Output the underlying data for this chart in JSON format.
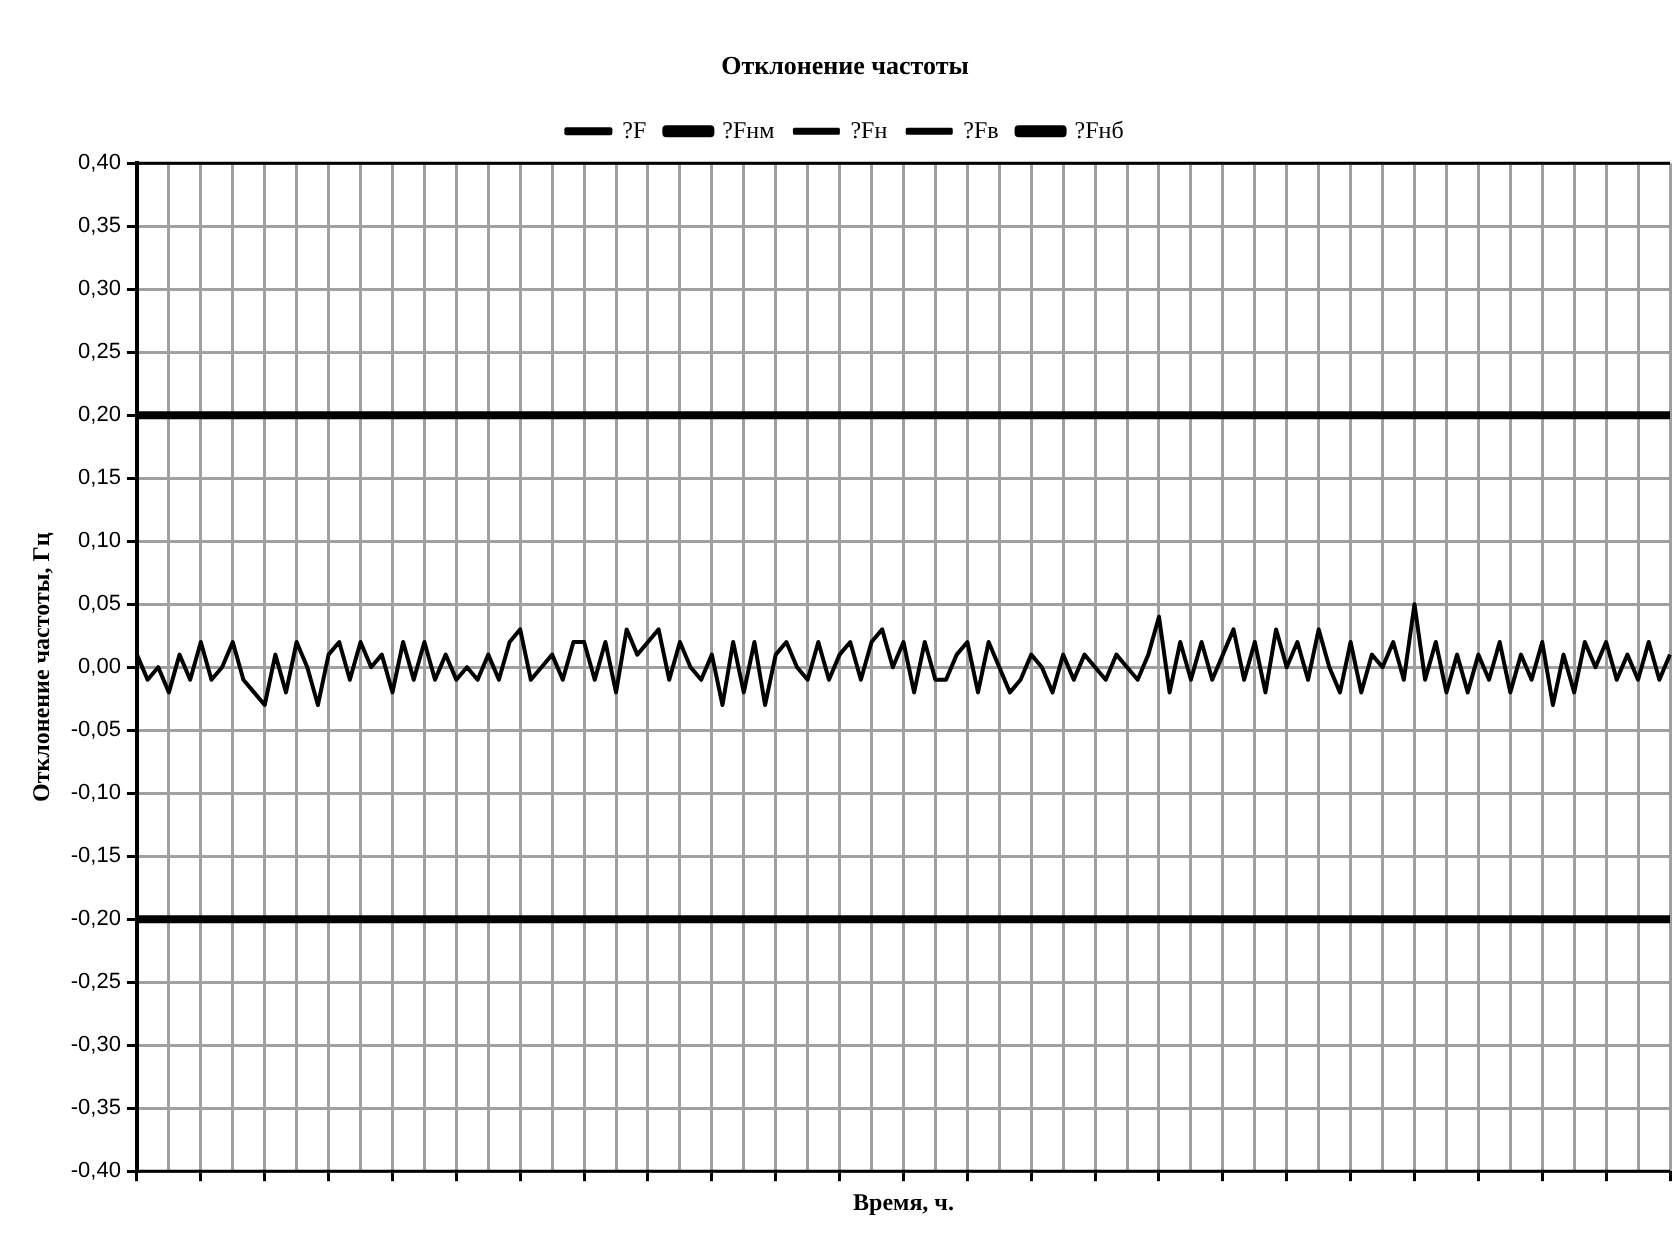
{
  "chart_data": {
    "type": "line",
    "title": "Отклонение частоты",
    "xlabel": "Время, ч.",
    "ylabel": "Отклонение частоты, Гц",
    "categories": [
      null,
      null,
      null,
      null,
      null,
      null,
      null,
      null,
      null,
      null,
      null,
      null,
      null,
      null,
      null,
      null,
      null,
      null,
      null,
      null,
      null,
      null,
      null,
      null,
      null,
      null,
      null,
      null,
      null,
      null,
      null,
      null,
      null,
      null,
      null,
      null,
      null,
      null,
      null,
      null,
      null,
      null,
      null,
      null,
      null,
      null,
      null,
      null,
      null,
      null,
      null,
      null,
      null,
      null,
      null,
      null,
      null,
      null,
      null,
      null,
      null,
      null,
      null,
      null,
      null,
      null,
      null,
      null,
      null,
      null,
      null,
      null,
      null,
      null,
      null,
      null,
      null,
      null,
      null,
      null,
      null,
      null,
      null,
      null,
      null,
      null,
      null,
      null,
      null,
      null,
      null,
      null,
      null,
      null,
      null,
      null,
      null,
      null,
      null,
      null,
      null,
      null,
      null,
      null,
      null,
      null,
      null,
      null,
      null,
      null,
      null,
      null,
      null,
      null,
      null,
      null,
      null,
      null,
      null,
      null,
      null,
      null,
      null,
      null,
      null,
      null,
      null,
      null,
      null,
      null,
      null,
      null,
      null,
      null,
      null,
      null,
      null,
      null,
      null,
      null,
      null,
      null,
      null,
      null,
      null
    ],
    "ylim": [
      -0.4,
      0.4
    ],
    "yticks": [
      {
        "value": -0.4,
        "label": "-0,40"
      },
      {
        "value": -0.35,
        "label": "-0,35"
      },
      {
        "value": -0.3,
        "label": "-0,30"
      },
      {
        "value": -0.25,
        "label": "-0,25"
      },
      {
        "value": -0.2,
        "label": "-0,20"
      },
      {
        "value": -0.15,
        "label": "-0,15"
      },
      {
        "value": -0.1,
        "label": "-0,10"
      },
      {
        "value": -0.05,
        "label": "-0,05"
      },
      {
        "value": 0,
        "label": "0,00"
      },
      {
        "value": 0.05,
        "label": "0,05"
      },
      {
        "value": 0.1,
        "label": "0,10"
      },
      {
        "value": 0.15,
        "label": "0,15"
      },
      {
        "value": 0.2,
        "label": "0,20"
      },
      {
        "value": 0.25,
        "label": "0,25"
      },
      {
        "value": 0.3,
        "label": "0,30"
      },
      {
        "value": 0.35,
        "label": "0,35"
      },
      {
        "value": 0.4,
        "label": "0,40"
      }
    ],
    "tick_labels": "y",
    "grid": true,
    "legend": "top",
    "marker": "none",
    "line_style": "solid",
    "series": [
      {
        "name": "?F",
        "color": "#000000",
        "values": [
          0.01,
          -0.01,
          0,
          -0.02,
          0.01,
          -0.01,
          0.02,
          -0.01,
          0,
          0.02,
          -0.01,
          -0.02,
          -0.03,
          0.01,
          -0.02,
          0.02,
          0,
          -0.03,
          0.01,
          0.02,
          -0.01,
          0.02,
          0,
          0.01,
          -0.02,
          0.02,
          -0.01,
          0.02,
          -0.01,
          0.01,
          -0.01,
          0,
          -0.01,
          0.01,
          -0.01,
          0.02,
          0.03,
          -0.01,
          0,
          0.01,
          -0.01,
          0.02,
          0.02,
          -0.01,
          0.02,
          -0.02,
          0.03,
          0.01,
          0.02,
          0.03,
          -0.01,
          0.02,
          0,
          -0.01,
          0.01,
          -0.03,
          0.02,
          -0.02,
          0.02,
          -0.03,
          0.01,
          0.02,
          0,
          -0.01,
          0.02,
          -0.01,
          0.01,
          0.02,
          -0.01,
          0.02,
          0.03,
          0,
          0.02,
          -0.02,
          0.02,
          -0.01,
          -0.01,
          0.01,
          0.02,
          -0.02,
          0.02,
          0,
          -0.02,
          -0.01,
          0.01,
          0,
          -0.02,
          0.01,
          -0.01,
          0.01,
          0,
          -0.01,
          0.01,
          0,
          -0.01,
          0.01,
          0.04,
          -0.02,
          0.02,
          -0.01,
          0.02,
          -0.01,
          0.01,
          0.03,
          -0.01,
          0.02,
          -0.02,
          0.03,
          0,
          0.02,
          -0.01,
          0.03,
          0,
          -0.02,
          0.02,
          -0.02,
          0.01,
          0,
          0.02,
          -0.01,
          0.05,
          -0.01,
          0.02,
          -0.02,
          0.01,
          -0.02,
          0.01,
          -0.01,
          0.02,
          -0.02,
          0.01,
          -0.01,
          0.02,
          -0.03,
          0.01,
          -0.02,
          0.02,
          0,
          0.02,
          -0.01,
          0.01,
          -0.01,
          0.02,
          -0.01,
          0.01
        ]
      },
      {
        "name": "?Fнм",
        "color": "#000000",
        "values": [
          -0.2,
          -0.2,
          -0.2,
          -0.2,
          -0.2,
          -0.2,
          -0.2,
          -0.2,
          -0.2,
          -0.2,
          -0.2,
          -0.2,
          -0.2,
          -0.2,
          -0.2,
          -0.2,
          -0.2,
          -0.2,
          -0.2,
          -0.2,
          -0.2,
          -0.2,
          -0.2,
          -0.2,
          -0.2,
          -0.2,
          -0.2,
          -0.2,
          -0.2,
          -0.2,
          -0.2,
          -0.2,
          -0.2,
          -0.2,
          -0.2,
          -0.2,
          -0.2,
          -0.2,
          -0.2,
          -0.2,
          -0.2,
          -0.2,
          -0.2,
          -0.2,
          -0.2,
          -0.2,
          -0.2,
          -0.2,
          -0.2,
          -0.2,
          -0.2,
          -0.2,
          -0.2,
          -0.2,
          -0.2,
          -0.2,
          -0.2,
          -0.2,
          -0.2,
          -0.2,
          -0.2,
          -0.2,
          -0.2,
          -0.2,
          -0.2,
          -0.2,
          -0.2,
          -0.2,
          -0.2,
          -0.2,
          -0.2,
          -0.2,
          -0.2,
          -0.2,
          -0.2,
          -0.2,
          -0.2,
          -0.2,
          -0.2,
          -0.2,
          -0.2,
          -0.2,
          -0.2,
          -0.2,
          -0.2,
          -0.2,
          -0.2,
          -0.2,
          -0.2,
          -0.2,
          -0.2,
          -0.2,
          -0.2,
          -0.2,
          -0.2,
          -0.2,
          -0.2,
          -0.2,
          -0.2,
          -0.2,
          -0.2,
          -0.2,
          -0.2,
          -0.2,
          -0.2,
          -0.2,
          -0.2,
          -0.2,
          -0.2,
          -0.2,
          -0.2,
          -0.2,
          -0.2,
          -0.2,
          -0.2,
          -0.2,
          -0.2,
          -0.2,
          -0.2,
          -0.2,
          -0.2,
          -0.2,
          -0.2,
          -0.2,
          -0.2,
          -0.2,
          -0.2,
          -0.2,
          -0.2,
          -0.2,
          -0.2,
          -0.2,
          -0.2,
          -0.2,
          -0.2,
          -0.2,
          -0.2,
          -0.2,
          -0.2,
          -0.2,
          -0.2,
          -0.2,
          -0.2,
          -0.2,
          -0.2
        ]
      },
      {
        "name": "?Fн",
        "color": "#000000",
        "values": [
          -0.4,
          -0.4,
          -0.4,
          -0.4,
          -0.4,
          -0.4,
          -0.4,
          -0.4,
          -0.4,
          -0.4,
          -0.4,
          -0.4,
          -0.4,
          -0.4,
          -0.4,
          -0.4,
          -0.4,
          -0.4,
          -0.4,
          -0.4,
          -0.4,
          -0.4,
          -0.4,
          -0.4,
          -0.4,
          -0.4,
          -0.4,
          -0.4,
          -0.4,
          -0.4,
          -0.4,
          -0.4,
          -0.4,
          -0.4,
          -0.4,
          -0.4,
          -0.4,
          -0.4,
          -0.4,
          -0.4,
          -0.4,
          -0.4,
          -0.4,
          -0.4,
          -0.4,
          -0.4,
          -0.4,
          -0.4,
          -0.4,
          -0.4,
          -0.4,
          -0.4,
          -0.4,
          -0.4,
          -0.4,
          -0.4,
          -0.4,
          -0.4,
          -0.4,
          -0.4,
          -0.4,
          -0.4,
          -0.4,
          -0.4,
          -0.4,
          -0.4,
          -0.4,
          -0.4,
          -0.4,
          -0.4,
          -0.4,
          -0.4,
          -0.4,
          -0.4,
          -0.4,
          -0.4,
          -0.4,
          -0.4,
          -0.4,
          -0.4,
          -0.4,
          -0.4,
          -0.4,
          -0.4,
          -0.4,
          -0.4,
          -0.4,
          -0.4,
          -0.4,
          -0.4,
          -0.4,
          -0.4,
          -0.4,
          -0.4,
          -0.4,
          -0.4,
          -0.4,
          -0.4,
          -0.4,
          -0.4,
          -0.4,
          -0.4,
          -0.4,
          -0.4,
          -0.4,
          -0.4,
          -0.4,
          -0.4,
          -0.4,
          -0.4,
          -0.4,
          -0.4,
          -0.4,
          -0.4,
          -0.4,
          -0.4,
          -0.4,
          -0.4,
          -0.4,
          -0.4,
          -0.4,
          -0.4,
          -0.4,
          -0.4,
          -0.4,
          -0.4,
          -0.4,
          -0.4,
          -0.4,
          -0.4,
          -0.4,
          -0.4,
          -0.4,
          -0.4,
          -0.4,
          -0.4,
          -0.4,
          -0.4,
          -0.4,
          -0.4,
          -0.4,
          -0.4,
          -0.4,
          -0.4,
          -0.4
        ]
      },
      {
        "name": "?Fв",
        "color": "#000000",
        "values": [
          0.4,
          0.4,
          0.4,
          0.4,
          0.4,
          0.4,
          0.4,
          0.4,
          0.4,
          0.4,
          0.4,
          0.4,
          0.4,
          0.4,
          0.4,
          0.4,
          0.4,
          0.4,
          0.4,
          0.4,
          0.4,
          0.4,
          0.4,
          0.4,
          0.4,
          0.4,
          0.4,
          0.4,
          0.4,
          0.4,
          0.4,
          0.4,
          0.4,
          0.4,
          0.4,
          0.4,
          0.4,
          0.4,
          0.4,
          0.4,
          0.4,
          0.4,
          0.4,
          0.4,
          0.4,
          0.4,
          0.4,
          0.4,
          0.4,
          0.4,
          0.4,
          0.4,
          0.4,
          0.4,
          0.4,
          0.4,
          0.4,
          0.4,
          0.4,
          0.4,
          0.4,
          0.4,
          0.4,
          0.4,
          0.4,
          0.4,
          0.4,
          0.4,
          0.4,
          0.4,
          0.4,
          0.4,
          0.4,
          0.4,
          0.4,
          0.4,
          0.4,
          0.4,
          0.4,
          0.4,
          0.4,
          0.4,
          0.4,
          0.4,
          0.4,
          0.4,
          0.4,
          0.4,
          0.4,
          0.4,
          0.4,
          0.4,
          0.4,
          0.4,
          0.4,
          0.4,
          0.4,
          0.4,
          0.4,
          0.4,
          0.4,
          0.4,
          0.4,
          0.4,
          0.4,
          0.4,
          0.4,
          0.4,
          0.4,
          0.4,
          0.4,
          0.4,
          0.4,
          0.4,
          0.4,
          0.4,
          0.4,
          0.4,
          0.4,
          0.4,
          0.4,
          0.4,
          0.4,
          0.4,
          0.4,
          0.4,
          0.4,
          0.4,
          0.4,
          0.4,
          0.4,
          0.4,
          0.4,
          0.4,
          0.4,
          0.4,
          0.4,
          0.4,
          0.4,
          0.4,
          0.4,
          0.4,
          0.4,
          0.4,
          0.4
        ]
      },
      {
        "name": "?Fнб",
        "color": "#000000",
        "values": [
          0.2,
          0.2,
          0.2,
          0.2,
          0.2,
          0.2,
          0.2,
          0.2,
          0.2,
          0.2,
          0.2,
          0.2,
          0.2,
          0.2,
          0.2,
          0.2,
          0.2,
          0.2,
          0.2,
          0.2,
          0.2,
          0.2,
          0.2,
          0.2,
          0.2,
          0.2,
          0.2,
          0.2,
          0.2,
          0.2,
          0.2,
          0.2,
          0.2,
          0.2,
          0.2,
          0.2,
          0.2,
          0.2,
          0.2,
          0.2,
          0.2,
          0.2,
          0.2,
          0.2,
          0.2,
          0.2,
          0.2,
          0.2,
          0.2,
          0.2,
          0.2,
          0.2,
          0.2,
          0.2,
          0.2,
          0.2,
          0.2,
          0.2,
          0.2,
          0.2,
          0.2,
          0.2,
          0.2,
          0.2,
          0.2,
          0.2,
          0.2,
          0.2,
          0.2,
          0.2,
          0.2,
          0.2,
          0.2,
          0.2,
          0.2,
          0.2,
          0.2,
          0.2,
          0.2,
          0.2,
          0.2,
          0.2,
          0.2,
          0.2,
          0.2,
          0.2,
          0.2,
          0.2,
          0.2,
          0.2,
          0.2,
          0.2,
          0.2,
          0.2,
          0.2,
          0.2,
          0.2,
          0.2,
          0.2,
          0.2,
          0.2,
          0.2,
          0.2,
          0.2,
          0.2,
          0.2,
          0.2,
          0.2,
          0.2,
          0.2,
          0.2,
          0.2,
          0.2,
          0.2,
          0.2,
          0.2,
          0.2,
          0.2,
          0.2,
          0.2,
          0.2,
          0.2,
          0.2,
          0.2,
          0.2,
          0.2,
          0.2,
          0.2,
          0.2,
          0.2,
          0.2,
          0.2,
          0.2,
          0.2,
          0.2,
          0.2,
          0.2,
          0.2,
          0.2,
          0.2,
          0.2,
          0.2,
          0.2,
          0.2,
          0.2
        ]
      }
    ]
  }
}
